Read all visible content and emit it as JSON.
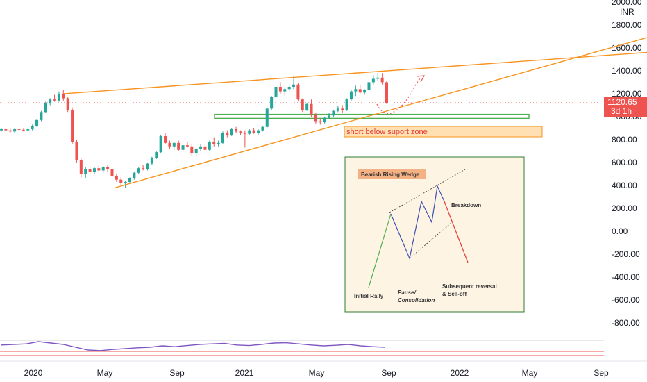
{
  "chart_data": {
    "type": "candlestick",
    "currency": "INR",
    "y_axis": {
      "ticks": [
        "2000.00",
        "1800.00",
        "1600.00",
        "1400.00",
        "1200.00",
        "1000.00",
        "800.00",
        "600.00",
        "400.00",
        "200.00",
        "0.00",
        "-200.00",
        "-400.00",
        "-600.00",
        "-800.00"
      ],
      "range": [
        -950,
        2030
      ]
    },
    "x_axis": {
      "labels": [
        "2020",
        "May",
        "Sep",
        "2021",
        "May",
        "Sep",
        "2022",
        "May",
        "Sep"
      ]
    },
    "last_price": {
      "value": "1120.65",
      "countdown": "3d 1h",
      "level": 1120.65
    },
    "candles": [
      [
        880,
        900,
        870,
        890
      ],
      [
        890,
        905,
        875,
        880
      ],
      [
        880,
        895,
        860,
        870
      ],
      [
        870,
        900,
        860,
        890
      ],
      [
        890,
        905,
        880,
        885
      ],
      [
        885,
        895,
        870,
        880
      ],
      [
        880,
        895,
        870,
        890
      ],
      [
        890,
        930,
        880,
        920
      ],
      [
        920,
        980,
        910,
        970
      ],
      [
        970,
        1050,
        960,
        1040
      ],
      [
        1040,
        1130,
        1030,
        1120
      ],
      [
        1120,
        1160,
        1100,
        1150
      ],
      [
        1150,
        1190,
        1130,
        1140
      ],
      [
        1140,
        1220,
        1130,
        1200
      ],
      [
        1200,
        1230,
        1140,
        1160
      ],
      [
        1160,
        1170,
        1040,
        1060
      ],
      [
        1060,
        1080,
        760,
        780
      ],
      [
        780,
        800,
        600,
        620
      ],
      [
        620,
        640,
        470,
        500
      ],
      [
        500,
        560,
        460,
        540
      ],
      [
        540,
        570,
        500,
        520
      ],
      [
        520,
        560,
        500,
        550
      ],
      [
        550,
        580,
        520,
        530
      ],
      [
        530,
        570,
        510,
        560
      ],
      [
        560,
        580,
        520,
        540
      ],
      [
        540,
        560,
        470,
        480
      ],
      [
        480,
        500,
        430,
        450
      ],
      [
        450,
        470,
        400,
        420
      ],
      [
        420,
        440,
        380,
        430
      ],
      [
        430,
        470,
        420,
        460
      ],
      [
        460,
        520,
        450,
        510
      ],
      [
        510,
        560,
        500,
        550
      ],
      [
        550,
        580,
        530,
        540
      ],
      [
        540,
        600,
        530,
        590
      ],
      [
        590,
        650,
        580,
        640
      ],
      [
        640,
        700,
        630,
        690
      ],
      [
        690,
        840,
        680,
        830
      ],
      [
        830,
        860,
        760,
        770
      ],
      [
        770,
        790,
        720,
        740
      ],
      [
        740,
        780,
        710,
        770
      ],
      [
        770,
        790,
        700,
        710
      ],
      [
        710,
        760,
        690,
        750
      ],
      [
        750,
        780,
        730,
        740
      ],
      [
        740,
        760,
        660,
        680
      ],
      [
        680,
        730,
        660,
        720
      ],
      [
        720,
        760,
        700,
        740
      ],
      [
        740,
        770,
        700,
        710
      ],
      [
        710,
        790,
        700,
        780
      ],
      [
        780,
        820,
        740,
        760
      ],
      [
        760,
        790,
        740,
        770
      ],
      [
        770,
        870,
        760,
        860
      ],
      [
        860,
        880,
        820,
        840
      ],
      [
        840,
        900,
        830,
        890
      ],
      [
        890,
        910,
        860,
        870
      ],
      [
        870,
        880,
        840,
        860
      ],
      [
        860,
        880,
        730,
        850
      ],
      [
        850,
        890,
        840,
        880
      ],
      [
        880,
        900,
        850,
        860
      ],
      [
        860,
        890,
        840,
        880
      ],
      [
        880,
        920,
        870,
        910
      ],
      [
        910,
        1080,
        900,
        1070
      ],
      [
        1070,
        1180,
        1060,
        1170
      ],
      [
        1170,
        1270,
        1160,
        1260
      ],
      [
        1260,
        1300,
        1200,
        1220
      ],
      [
        1220,
        1250,
        1180,
        1240
      ],
      [
        1240,
        1280,
        1220,
        1260
      ],
      [
        1260,
        1350,
        1240,
        1280
      ],
      [
        1280,
        1290,
        1140,
        1150
      ],
      [
        1150,
        1160,
        1040,
        1060
      ],
      [
        1060,
        1120,
        1050,
        1110
      ],
      [
        1110,
        1150,
        1000,
        1020
      ],
      [
        1020,
        1030,
        940,
        960
      ],
      [
        960,
        980,
        930,
        950
      ],
      [
        950,
        1000,
        940,
        990
      ],
      [
        990,
        1030,
        980,
        1010
      ],
      [
        1010,
        1060,
        1000,
        1050
      ],
      [
        1050,
        1090,
        1040,
        1070
      ],
      [
        1070,
        1100,
        1030,
        1060
      ],
      [
        1060,
        1160,
        1050,
        1150
      ],
      [
        1150,
        1230,
        1140,
        1220
      ],
      [
        1220,
        1270,
        1180,
        1240
      ],
      [
        1240,
        1280,
        1200,
        1210
      ],
      [
        1210,
        1240,
        1190,
        1230
      ],
      [
        1230,
        1310,
        1220,
        1300
      ],
      [
        1300,
        1360,
        1280,
        1330
      ],
      [
        1330,
        1380,
        1310,
        1340
      ],
      [
        1340,
        1380,
        1280,
        1300
      ],
      [
        1300,
        1310,
        1110,
        1120
      ]
    ],
    "trendlines": [
      {
        "name": "upper-wedge-line",
        "from": [
          92,
          1200
        ],
        "to": [
          932,
          1560
        ]
      },
      {
        "name": "lower-wedge-line",
        "from": [
          166,
          380
        ],
        "to": [
          932,
          1690
        ]
      }
    ],
    "support_zone": {
      "from_index": 309,
      "to_index": 762,
      "low": 985,
      "high": 1020
    },
    "resistance_level": 1120.65,
    "annotations": {
      "support_label": "short below suport zone",
      "wedge_title": "Bearish Rising Wedge",
      "breakdown": "Breakdown",
      "initial_rally": "Initial Rally",
      "pause_line1": "Pause/",
      "pause_line2": "Consolidation",
      "reversal_line1": "Subsequent reversal",
      "reversal_line2": "& Sell-off"
    },
    "oscillator": {
      "type": "line",
      "values": [
        58,
        60,
        62,
        70,
        65,
        60,
        50,
        40,
        38,
        42,
        45,
        48,
        50,
        55,
        52,
        56,
        60,
        62,
        64,
        58,
        56,
        60,
        65,
        66,
        62,
        58,
        55,
        57,
        60,
        55,
        52,
        50
      ]
    }
  },
  "colors": {
    "up": "#26a69a",
    "down": "#ef5350",
    "wedge": "#f7931e",
    "support": "#4caf50",
    "price_label": "#ef5350",
    "oscillator": "#7e57c2"
  }
}
